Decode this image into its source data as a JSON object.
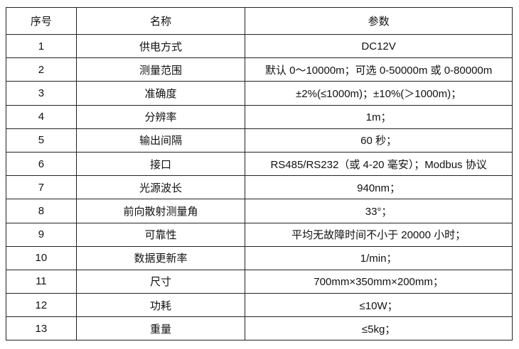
{
  "table": {
    "headers": [
      "序号",
      "名称",
      "参数"
    ],
    "rows": [
      [
        "1",
        "供电方式",
        "DC12V"
      ],
      [
        "2",
        "测量范围",
        "默认 0～10000m；可选 0-50000m 或 0-80000m"
      ],
      [
        "3",
        "准确度",
        "±2%(≤1000m)；±10%(＞1000m)；"
      ],
      [
        "4",
        "分辨率",
        "1m；"
      ],
      [
        "5",
        "输出间隔",
        "60 秒；"
      ],
      [
        "6",
        "接口",
        "RS485/RS232（或 4-20 毫安）；Modbus 协议"
      ],
      [
        "7",
        "光源波长",
        "940nm；"
      ],
      [
        "8",
        "前向散射测量角",
        "33°；"
      ],
      [
        "9",
        "可靠性",
        "平均无故障时间不小于 20000 小时；"
      ],
      [
        "10",
        "数据更新率",
        "1/min；"
      ],
      [
        "11",
        "尺寸",
        "700mm×350mm×200mm；"
      ],
      [
        "12",
        "功耗",
        "≤10W；"
      ],
      [
        "13",
        "重量",
        "≤5kg；"
      ]
    ]
  }
}
